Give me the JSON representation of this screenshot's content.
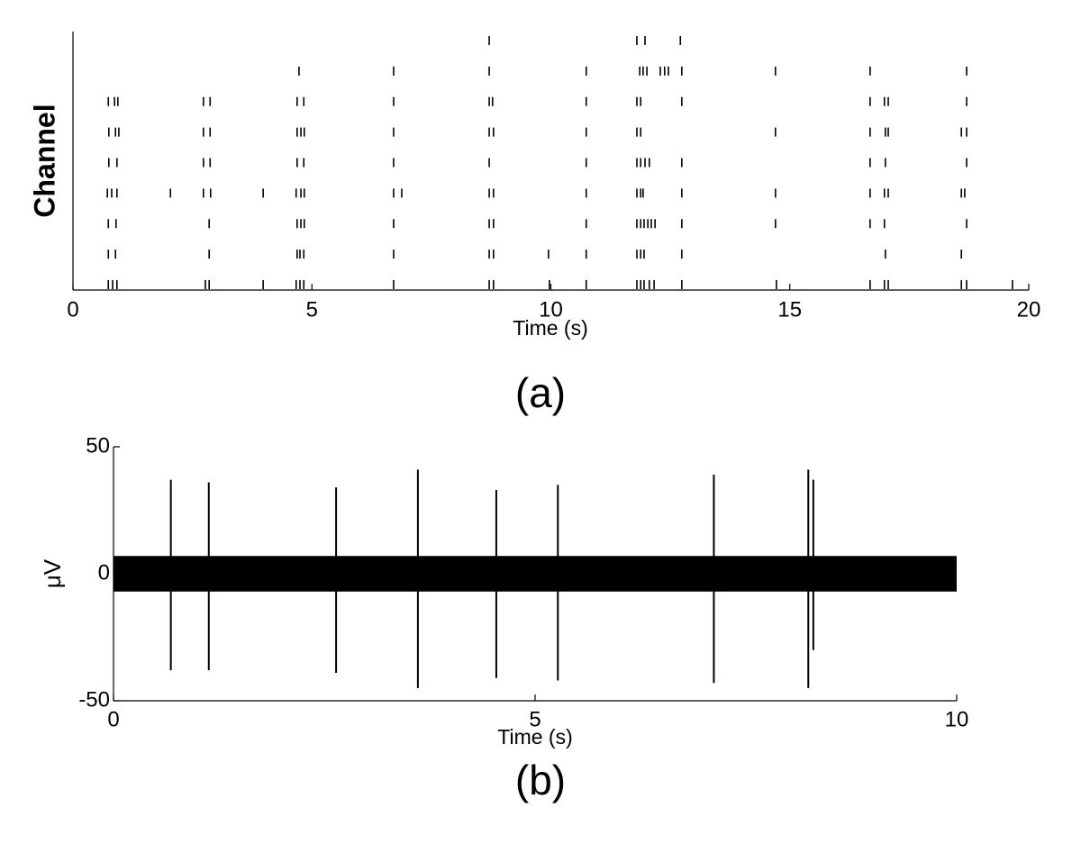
{
  "chart_data": [
    {
      "type": "raster",
      "ylabel": "Channel",
      "xlabel": "Time (s)",
      "caption": "(a)",
      "xlim": [
        0,
        20
      ],
      "xticks": [
        0,
        5,
        10,
        15,
        20
      ],
      "rows": [
        [
          8.71,
          11.8,
          11.97,
          12.71
        ],
        [
          4.73,
          6.71,
          8.71,
          10.74,
          11.86,
          11.93,
          12.01,
          12.29,
          12.38,
          12.46,
          12.74,
          14.7,
          16.68,
          18.7
        ],
        [
          0.74,
          0.87,
          0.94,
          2.73,
          2.87,
          4.69,
          4.83,
          6.71,
          8.71,
          8.78,
          10.74,
          11.8,
          11.88,
          12.74,
          16.68,
          16.98,
          17.06,
          18.7
        ],
        [
          0.75,
          0.89,
          0.96,
          2.73,
          2.87,
          4.69,
          4.77,
          4.84,
          6.71,
          8.71,
          8.8,
          10.74,
          11.8,
          11.88,
          14.7,
          16.68,
          17.0,
          17.06,
          18.59,
          18.7
        ],
        [
          0.75,
          0.92,
          2.73,
          2.87,
          4.69,
          4.83,
          6.71,
          8.71,
          10.74,
          11.8,
          11.88,
          11.97,
          12.06,
          12.74,
          16.68,
          17.0,
          18.7
        ],
        [
          0.72,
          0.81,
          0.92,
          2.04,
          2.73,
          2.88,
          3.98,
          4.67,
          4.77,
          4.84,
          6.71,
          6.88,
          8.71,
          8.8,
          10.74,
          11.8,
          11.88,
          11.93,
          12.74,
          14.7,
          16.68,
          16.98,
          17.06,
          18.59,
          18.66
        ],
        [
          0.74,
          0.9,
          2.85,
          4.69,
          4.77,
          4.84,
          6.71,
          8.71,
          8.8,
          10.74,
          11.8,
          11.88,
          11.95,
          12.03,
          12.1,
          12.18,
          12.74,
          14.7,
          16.68,
          16.98,
          18.7
        ],
        [
          0.74,
          0.89,
          2.85,
          4.69,
          4.75,
          4.83,
          6.71,
          8.71,
          8.8,
          9.95,
          10.74,
          11.8,
          11.88,
          11.95,
          12.74,
          17.0,
          18.59
        ],
        [
          0.74,
          0.83,
          0.92,
          2.77,
          2.85,
          3.98,
          4.67,
          4.75,
          4.83,
          6.71,
          8.71,
          8.8,
          9.97,
          10.74,
          11.8,
          11.88,
          11.95,
          12.06,
          12.16,
          12.74,
          14.72,
          16.68,
          16.98,
          17.06,
          18.59,
          18.7,
          19.66
        ]
      ]
    },
    {
      "type": "trace",
      "ylabel": "μV",
      "xlabel": "Time (s)",
      "caption": "(b)",
      "xlim": [
        0,
        10
      ],
      "xticks": [
        0,
        5,
        10
      ],
      "ylim": [
        -50,
        50
      ],
      "yticks": [
        -50,
        0,
        50
      ],
      "noise_band": [
        -7,
        7
      ],
      "spikes": {
        "x": [
          0.68,
          1.13,
          2.64,
          3.61,
          4.54,
          5.27,
          7.12,
          8.24,
          8.3
        ],
        "max": [
          37,
          36,
          34,
          41,
          33,
          35,
          39,
          41,
          37
        ],
        "min": [
          -38,
          -38,
          -39,
          -45,
          -41,
          -42,
          -43,
          -45,
          -30
        ]
      }
    }
  ]
}
